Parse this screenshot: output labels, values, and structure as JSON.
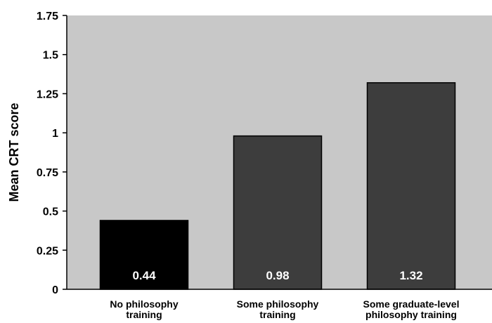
{
  "chart_data": {
    "type": "bar",
    "title": "",
    "xlabel": "",
    "ylabel": "Mean CRT score",
    "ylim": [
      0,
      1.75
    ],
    "yticks": [
      "0",
      "0.25",
      "0.5",
      "0.75",
      "1",
      "1.25",
      "1.5",
      "1.75"
    ],
    "categories": [
      [
        "No philosophy",
        "training"
      ],
      [
        "Some philosophy",
        "training"
      ],
      [
        "Some graduate-level",
        "philosophy training"
      ]
    ],
    "values": [
      0.44,
      0.98,
      1.32
    ],
    "data_labels": [
      "0.44",
      "0.98",
      "1.32"
    ],
    "grid": false,
    "legend": "none",
    "colors": {
      "plot_background": "#c8c8c8",
      "bars": [
        "#000000",
        "#3d3d3d",
        "#3d3d3d"
      ],
      "data_label": "#ffffff"
    }
  }
}
